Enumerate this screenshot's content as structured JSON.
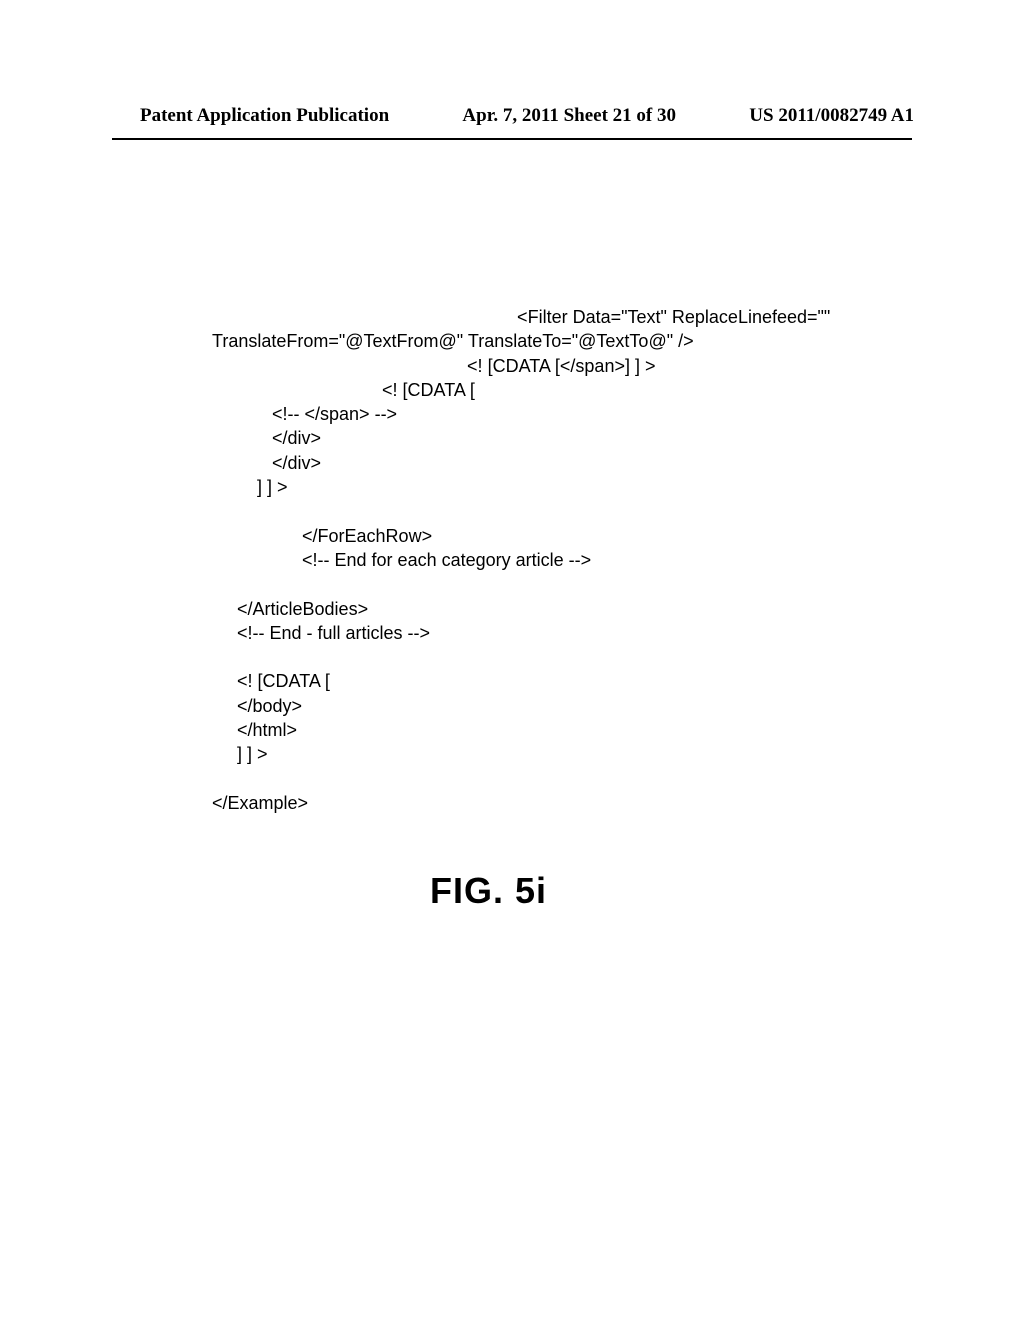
{
  "header": {
    "left": "Patent Application Publication",
    "center": "Apr. 7, 2011  Sheet 21 of 30",
    "right": "US 2011/0082749 A1"
  },
  "code": {
    "line1": "                                                             <Filter Data=\"Text\" ReplaceLinefeed=\"\"",
    "line2": "TranslateFrom=\"@TextFrom@\" TranslateTo=\"@TextTo@\" />",
    "line3": "                                                   <! [CDATA [</span>] ] >",
    "line4": "                                  <! [CDATA [",
    "line5": "            <!-- </span> -->",
    "line6": "            </div>",
    "line7": "            </div>",
    "line8": "         ] ] >",
    "line9": "",
    "line10": "                  </ForEachRow>",
    "line11": "                  <!-- End for each category article -->",
    "line12": "",
    "line13": "     </ArticleBodies>",
    "line14": "     <!-- End - full articles -->",
    "line15": "",
    "line16": "     <! [CDATA [",
    "line17": "     </body>",
    "line18": "     </html>",
    "line19": "     ] ] >",
    "line20": "",
    "line21": "</Example>"
  },
  "figure_label": "FIG. 5i"
}
